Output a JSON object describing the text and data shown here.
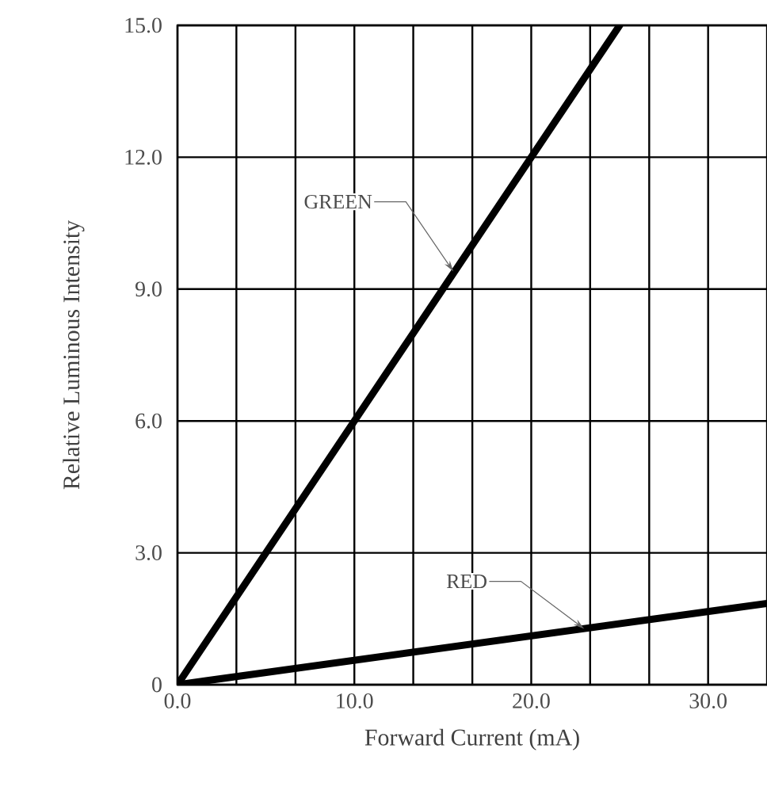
{
  "chart_data": {
    "type": "line",
    "xlabel": "Forward Current (mA)",
    "ylabel": "Relative Luminous Intensity",
    "xlim": [
      0,
      33.33
    ],
    "ylim": [
      0,
      15
    ],
    "xticks": [
      {
        "value": 0,
        "label": "0.0"
      },
      {
        "value": 3.33,
        "label": null
      },
      {
        "value": 6.67,
        "label": null
      },
      {
        "value": 10,
        "label": "10.0"
      },
      {
        "value": 13.33,
        "label": null
      },
      {
        "value": 16.67,
        "label": null
      },
      {
        "value": 20,
        "label": "20.0"
      },
      {
        "value": 23.33,
        "label": null
      },
      {
        "value": 26.67,
        "label": null
      },
      {
        "value": 30,
        "label": "30.0"
      }
    ],
    "yticks": [
      0,
      {
        "value": 3,
        "label": "3.0"
      },
      {
        "value": 6,
        "label": "6.0"
      },
      {
        "value": 9,
        "label": "9.0"
      },
      {
        "value": 12,
        "label": "12.0"
      },
      {
        "value": 15,
        "label": "15.0"
      }
    ],
    "grid": true,
    "marker": "none",
    "line_style": "solid",
    "series": [
      {
        "color": "#000000",
        "x": [
          0,
          25
        ],
        "values": [
          0,
          15
        ]
      },
      {
        "color": "#000000",
        "x": [
          0,
          33.33
        ],
        "values": [
          0,
          1.85
        ]
      }
    ],
    "annotations": [
      {
        "text": "GREEN",
        "x": 15.6,
        "y": 9.4
      },
      {
        "text": "RED",
        "x": 23,
        "y": 1.27
      }
    ]
  }
}
